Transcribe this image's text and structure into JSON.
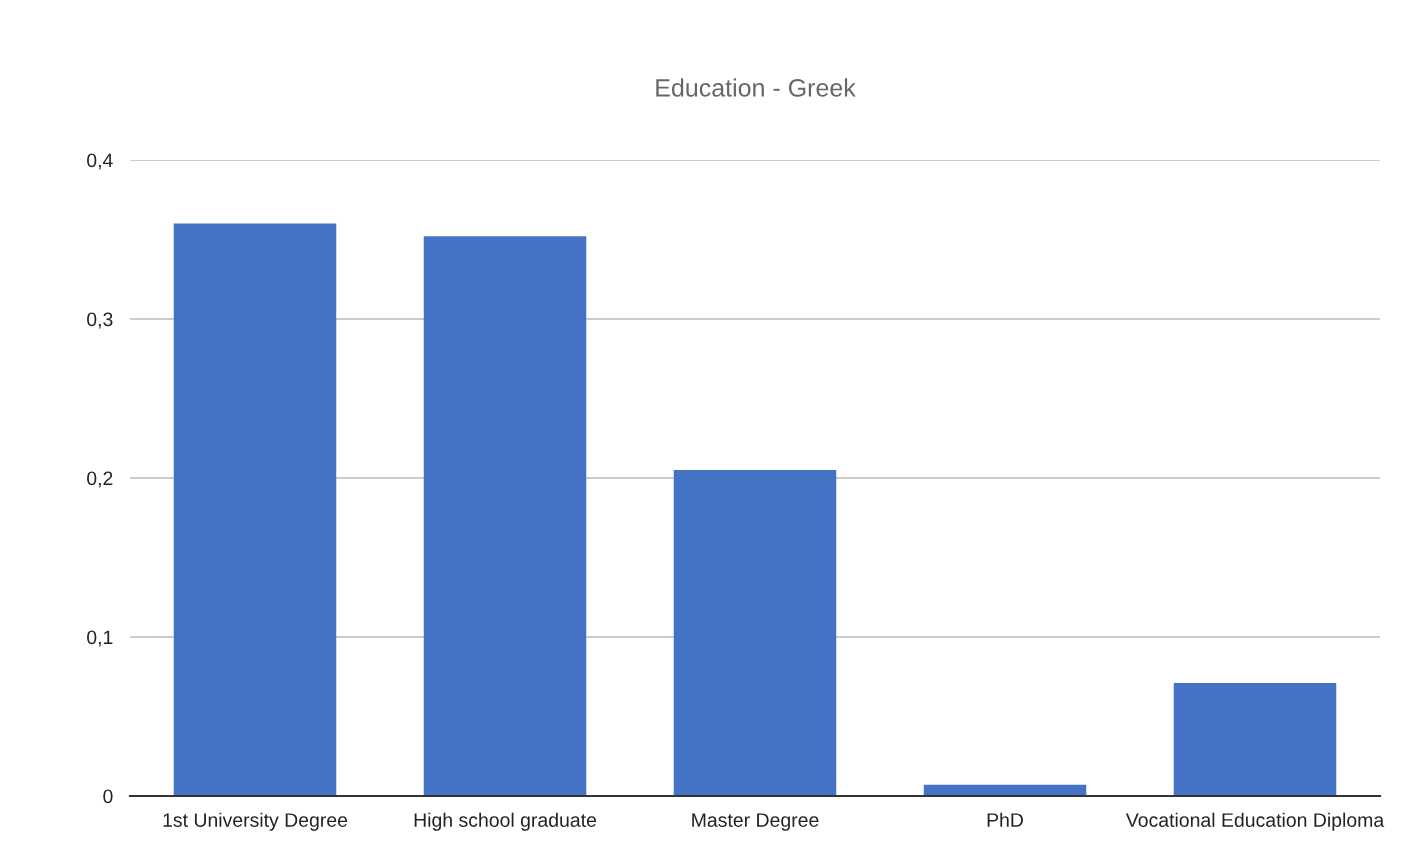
{
  "chart_data": {
    "type": "bar",
    "title": "Education - Greek",
    "categories": [
      "1st University Degree",
      "High school graduate",
      "Master Degree",
      "PhD",
      "Vocational Education Diploma"
    ],
    "values": [
      0.36,
      0.352,
      0.205,
      0.007,
      0.071
    ],
    "color": "#4472c4",
    "ylim": [
      0,
      0.4
    ],
    "yticks": [
      {
        "value": 0,
        "label": "0"
      },
      {
        "value": 0.1,
        "label": "0,1"
      },
      {
        "value": 0.2,
        "label": "0,2"
      },
      {
        "value": 0.3,
        "label": "0,3"
      },
      {
        "value": 0.4,
        "label": "0,4"
      }
    ],
    "grid": "y",
    "legend": false
  }
}
